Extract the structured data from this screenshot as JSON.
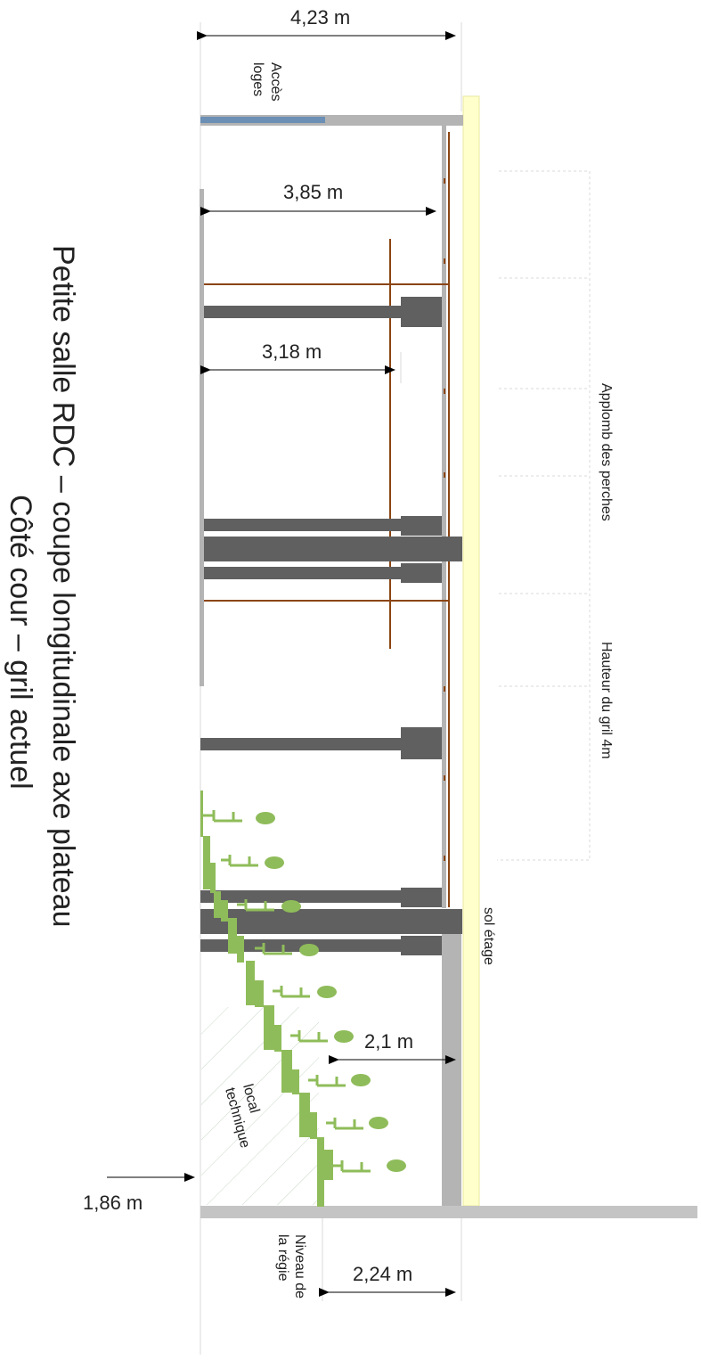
{
  "title": {
    "line1": "Petite salle RDC – coupe longitudinale axe plateau",
    "line2": "Côté cour – gril actuel"
  },
  "dimensions": {
    "total_width": "4,23 m",
    "upper_width": "3,85 m",
    "mid_width": "3,18 m",
    "lower_width": "2,1 m",
    "bottom_width": "2,24 m",
    "level": "1,86 m"
  },
  "labels": {
    "acces_loges_line1": "Accès",
    "acces_loges_line2": "loges",
    "aplomb_perches": "Applomb des perches",
    "hauteur_gril": "Hauteur du gril 4m",
    "sol_etage": "sol étage",
    "local_line1": "local",
    "local_line2": "technique",
    "regie_line1": "Niveau de",
    "regie_line2": "la régie"
  },
  "colors": {
    "beam": "#606060",
    "wall": "#b4b4b4",
    "rope": "#8b4513",
    "seats": "#8fbc5a",
    "floor_yellow": "#ffffcc",
    "access_blue": "#6b8fb5"
  }
}
